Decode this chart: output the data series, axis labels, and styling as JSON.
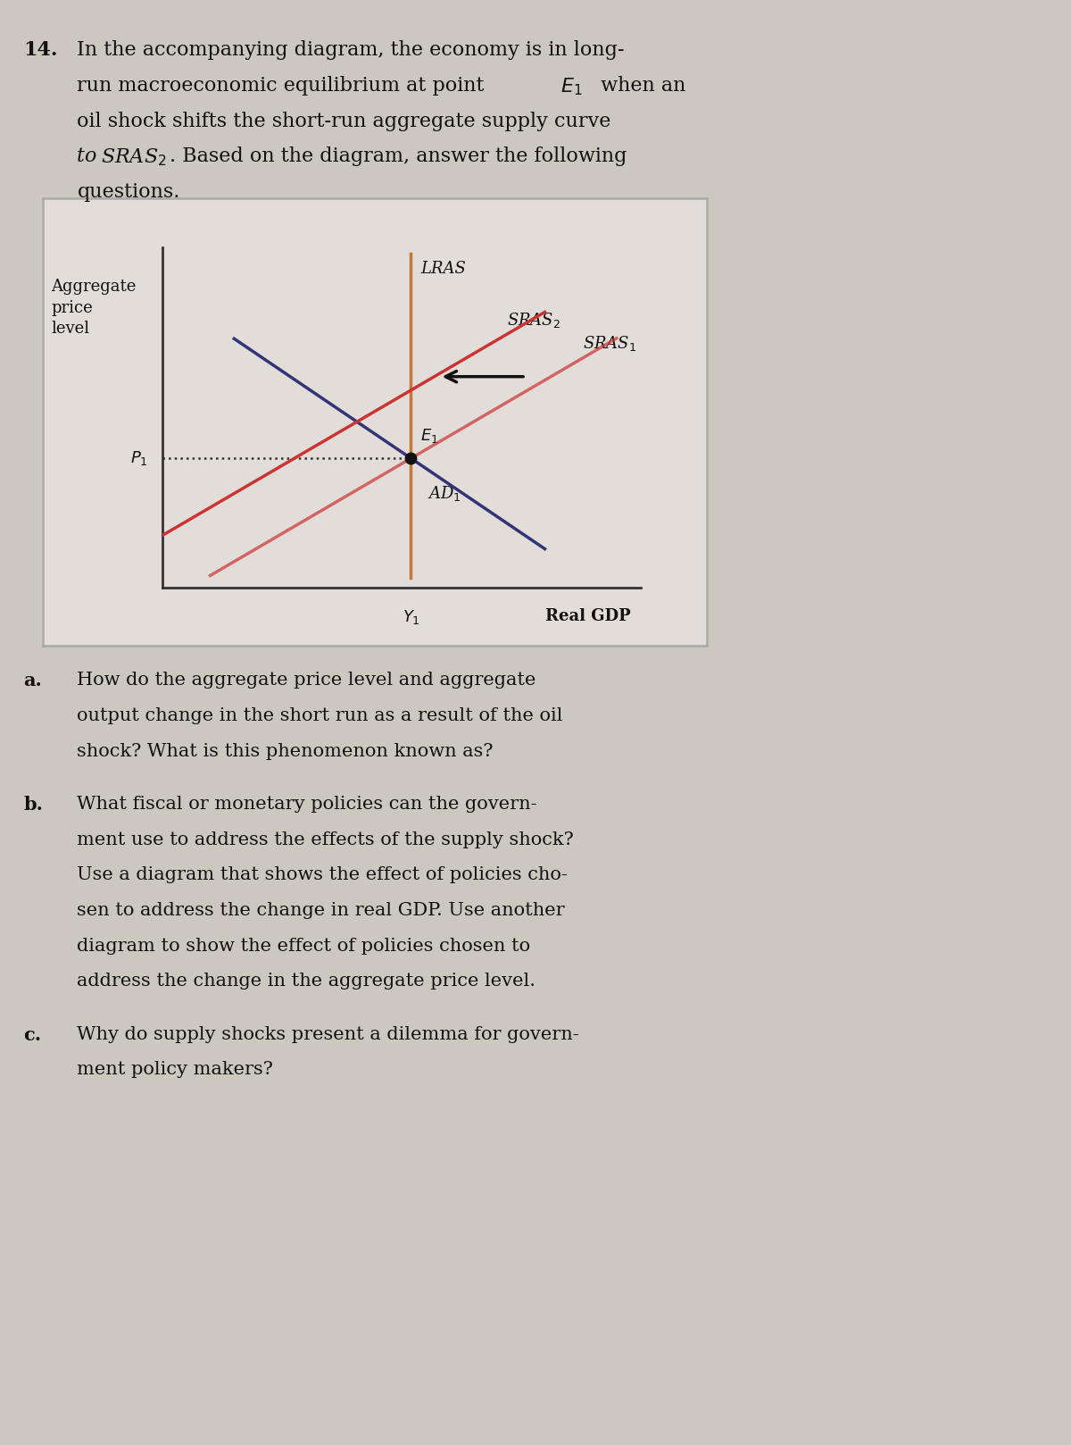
{
  "fig_width": 12.0,
  "fig_height": 16.18,
  "bg_color": "#ccc8c0",
  "box_bg": "#e2ddd8",
  "box_edge": "#aaaaaa",
  "lras_color": "#c87832",
  "sras1_color": "#cc3333",
  "sras2_color": "#cc3333",
  "ad_color": "#333377",
  "dot_color": "#111111",
  "arrow_color": "#111111",
  "dotted_color": "#333333",
  "text_color": "#111111",
  "axis_color": "#333333",
  "header_fontsize": 16,
  "label_fontsize": 15,
  "diagram_label_fontsize": 13,
  "small_fontsize": 10,
  "E1_x": 5.2,
  "E1_y": 3.8,
  "lras_x": 5.2,
  "sras1_slope": 0.82,
  "sras2_shift": 2.0,
  "ad_slope": -0.95,
  "xlim": [
    0,
    10
  ],
  "ylim": [
    0,
    10
  ]
}
